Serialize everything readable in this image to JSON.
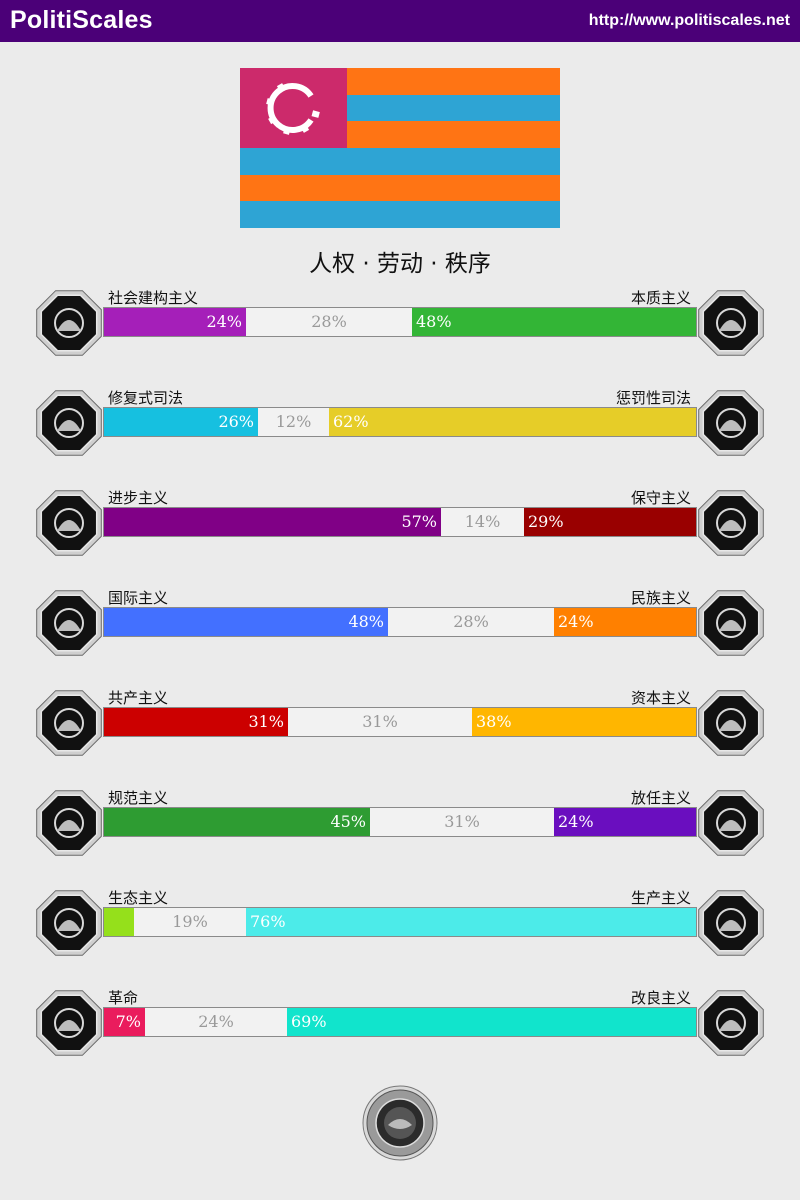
{
  "header": {
    "brand": "PolitiScales",
    "url": "http://www.politiscales.net"
  },
  "flag": {
    "colors": {
      "canton": "#cc2a6b",
      "orange": "#ff7414",
      "blue": "#2ea4d4",
      "gear": "#ffffff"
    }
  },
  "ideology_title": "人权 · 劳动 · 秩序",
  "axes": [
    {
      "left_label": "社会建构主义",
      "right_label": "本质主义",
      "left_pct": 24,
      "mid_pct": 28,
      "right_pct": 48,
      "left_text": "24%",
      "mid_text": "28%",
      "right_text": "48%",
      "left_color": "#a51fb9",
      "right_color": "#33b536",
      "left_icon": "eye-web-icon",
      "right_icon": "flower-icon"
    },
    {
      "left_label": "修复式司法",
      "right_label": "惩罚性司法",
      "left_pct": 26,
      "mid_pct": 12,
      "right_pct": 62,
      "left_text": "26%",
      "mid_text": "12%",
      "right_text": "62%",
      "left_color": "#16c0e0",
      "right_color": "#e6cd28",
      "left_icon": "handshake-icon",
      "right_icon": "prison-bars-icon"
    },
    {
      "left_label": "进步主义",
      "right_label": "保守主义",
      "left_pct": 57,
      "mid_pct": 14,
      "right_pct": 29,
      "left_text": "57%",
      "mid_text": "14%",
      "right_text": "29%",
      "left_color": "#800086",
      "right_color": "#990000",
      "left_icon": "rocket-icon",
      "right_icon": "quill-pen-icon"
    },
    {
      "left_label": "国际主义",
      "right_label": "民族主义",
      "left_pct": 48,
      "mid_pct": 28,
      "right_pct": 24,
      "left_text": "48%",
      "mid_text": "28%",
      "right_text": "24%",
      "left_color": "#4370ff",
      "right_color": "#ff8000",
      "left_icon": "globe-laurel-icon",
      "right_icon": "flag-icon"
    },
    {
      "left_label": "共产主义",
      "right_label": "资本主义",
      "left_pct": 31,
      "mid_pct": 31,
      "right_pct": 38,
      "left_text": "31%",
      "mid_text": "31%",
      "right_text": "38%",
      "left_color": "#cc0000",
      "right_color": "#ffb600",
      "left_icon": "hammer-sickle-icon",
      "right_icon": "money-bag-icon"
    },
    {
      "left_label": "规范主义",
      "right_label": "放任主义",
      "left_pct": 45,
      "mid_pct": 31,
      "right_pct": 24,
      "left_text": "45%",
      "mid_text": "31%",
      "right_text": "24%",
      "left_color": "#2e9c32",
      "right_color": "#6a0ebf",
      "left_icon": "ruler-icon",
      "right_icon": "butterfly-icon"
    },
    {
      "left_label": "生态主义",
      "right_label": "生产主义",
      "left_pct": 5,
      "mid_pct": 19,
      "right_pct": 76,
      "left_text": "",
      "mid_text": "19%",
      "right_text": "76%",
      "left_color": "#95e01b",
      "right_color": "#4cebe9",
      "left_icon": "sprout-icon",
      "right_icon": "gear-factory-icon"
    },
    {
      "left_label": "革命",
      "right_label": "改良主义",
      "left_pct": 7,
      "mid_pct": 24,
      "right_pct": 69,
      "left_text": "7%",
      "mid_text": "24%",
      "right_text": "69%",
      "left_color": "#ea1c5d",
      "right_color": "#11e4cc",
      "left_icon": "fist-icon",
      "right_icon": "ballot-box-icon"
    }
  ]
}
